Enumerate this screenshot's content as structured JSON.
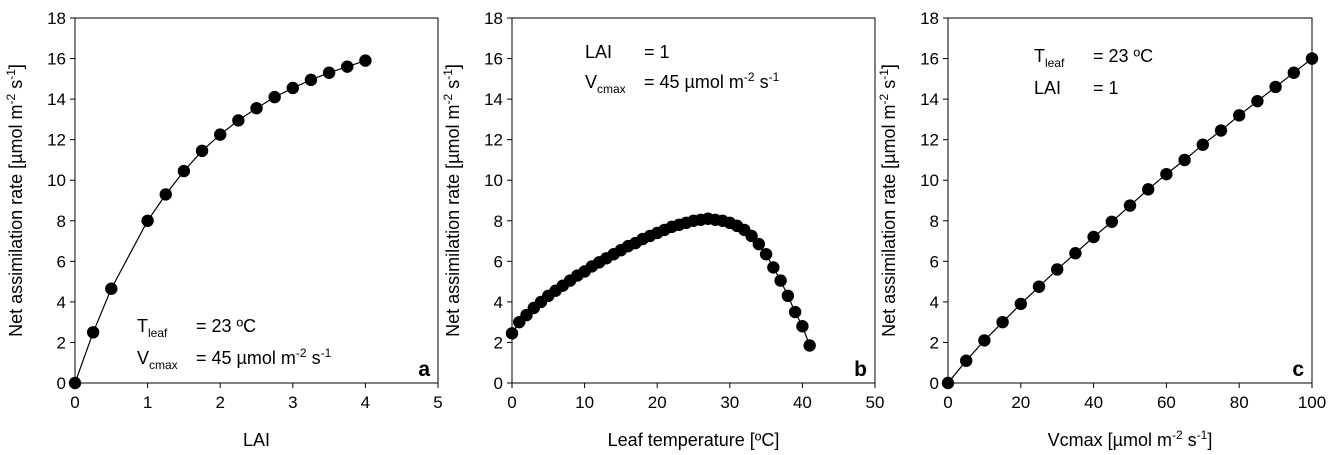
{
  "chart_data": [
    {
      "type": "line",
      "panel_label": "a",
      "xlabel": "LAI",
      "ylabel": {
        "main": "Net assimilation rate [µmol m",
        "sup1": "-2",
        "mid": " s",
        "sup2": "-1",
        "end": "]"
      },
      "xlim": [
        0,
        5
      ],
      "ylim": [
        0,
        18
      ],
      "xticks": [
        0,
        1,
        2,
        3,
        4,
        5
      ],
      "yticks": [
        0,
        2,
        4,
        6,
        8,
        10,
        12,
        14,
        16,
        18
      ],
      "grid": false,
      "annotation": [
        {
          "name": "T",
          "sub": "leaf",
          "value": "= 23 ºC"
        },
        {
          "name": "V",
          "sub": "cmax",
          "value": "= 45 µmol m",
          "sup1": "-2",
          "mid": " s",
          "sup2": "-1"
        }
      ],
      "series": [
        {
          "x": [
            0,
            0.25,
            0.5,
            1,
            1.25,
            1.5,
            1.75,
            2,
            2.25,
            2.5,
            2.75,
            3,
            3.25,
            3.5,
            3.75,
            4
          ],
          "y": [
            0,
            2.5,
            4.65,
            8.0,
            9.3,
            10.45,
            11.45,
            12.25,
            12.95,
            13.55,
            14.1,
            14.55,
            14.95,
            15.3,
            15.6,
            15.9
          ]
        }
      ]
    },
    {
      "type": "line",
      "panel_label": "b",
      "xlabel": "Leaf temperature [ºC]",
      "ylabel": {
        "main": "Net assimilation rate [µmol m",
        "sup1": "-2",
        "mid": " s",
        "sup2": "-1",
        "end": "]"
      },
      "xlim": [
        0,
        50
      ],
      "ylim": [
        0,
        18
      ],
      "xticks": [
        0,
        10,
        20,
        30,
        40,
        50
      ],
      "yticks": [
        0,
        2,
        4,
        6,
        8,
        10,
        12,
        14,
        16,
        18
      ],
      "grid": false,
      "annotation": [
        {
          "name": "LAI",
          "sub": "",
          "value": "= 1"
        },
        {
          "name": "V",
          "sub": "cmax",
          "value": "= 45 µmol m",
          "sup1": "-2",
          "mid": " s",
          "sup2": "-1"
        }
      ],
      "series": [
        {
          "x": [
            0,
            1,
            2,
            3,
            4,
            5,
            6,
            7,
            8,
            9,
            10,
            11,
            12,
            13,
            14,
            15,
            16,
            17,
            18,
            19,
            20,
            21,
            22,
            23,
            24,
            25,
            26,
            27,
            28,
            29,
            30,
            31,
            32,
            33,
            34,
            35,
            36,
            37,
            38,
            39,
            40,
            41
          ],
          "y": [
            2.45,
            3.0,
            3.35,
            3.7,
            4.0,
            4.3,
            4.55,
            4.8,
            5.05,
            5.3,
            5.5,
            5.75,
            5.95,
            6.15,
            6.35,
            6.55,
            6.75,
            6.9,
            7.1,
            7.25,
            7.4,
            7.55,
            7.7,
            7.8,
            7.9,
            8.0,
            8.05,
            8.1,
            8.05,
            8.0,
            7.9,
            7.75,
            7.55,
            7.25,
            6.85,
            6.35,
            5.7,
            5.05,
            4.3,
            3.5,
            2.8,
            1.85
          ]
        }
      ]
    },
    {
      "type": "line",
      "panel_label": "c",
      "xlabel": {
        "main": "Vcmax [µmol m",
        "sup1": "-2",
        "mid": " s",
        "sup2": "-1",
        "end": "]"
      },
      "ylabel": {
        "main": "Net assimilation rate [µmol m",
        "sup1": "-2",
        "mid": " s",
        "sup2": "-1",
        "end": "]"
      },
      "xlim": [
        0,
        100
      ],
      "ylim": [
        0,
        18
      ],
      "xticks": [
        0,
        20,
        40,
        60,
        80,
        100
      ],
      "yticks": [
        0,
        2,
        4,
        6,
        8,
        10,
        12,
        14,
        16,
        18
      ],
      "grid": false,
      "annotation": [
        {
          "name": "T",
          "sub": "leaf",
          "value": "= 23 ºC"
        },
        {
          "name": "LAI",
          "sub": "",
          "value": "= 1"
        }
      ],
      "series": [
        {
          "x": [
            0,
            5,
            10,
            15,
            20,
            25,
            30,
            35,
            40,
            45,
            50,
            55,
            60,
            65,
            70,
            75,
            80,
            85,
            90,
            95,
            100
          ],
          "y": [
            0,
            1.1,
            2.1,
            3.0,
            3.9,
            4.75,
            5.6,
            6.4,
            7.2,
            7.95,
            8.75,
            9.55,
            10.3,
            11.0,
            11.75,
            12.45,
            13.2,
            13.9,
            14.6,
            15.3,
            16.0
          ]
        }
      ]
    }
  ]
}
